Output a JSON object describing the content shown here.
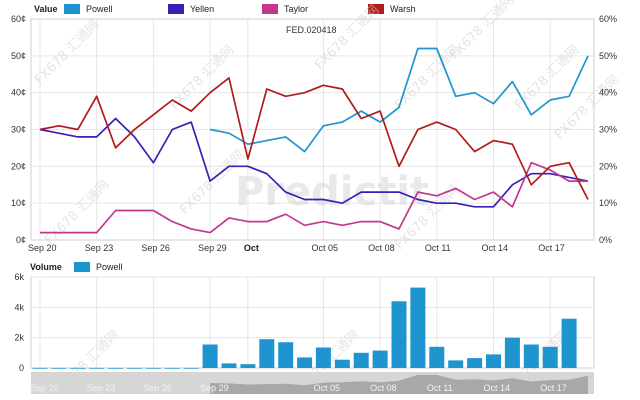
{
  "chart_data": [
    {
      "type": "line",
      "title": "FED.020418",
      "header_label": "Value",
      "y_left_ticks": [
        "0¢",
        "10¢",
        "20¢",
        "30¢",
        "40¢",
        "50¢",
        "60¢"
      ],
      "y_right_ticks": [
        "0%",
        "10%",
        "20%",
        "30%",
        "40%",
        "50%",
        "60%"
      ],
      "ylim": [
        0,
        60
      ],
      "x_ticks": [
        {
          "day": 20,
          "label": "Sep 20",
          "bold": false
        },
        {
          "day": 23,
          "label": "Sep 23",
          "bold": false
        },
        {
          "day": 26,
          "label": "Sep 26",
          "bold": false
        },
        {
          "day": 29,
          "label": "Sep 29",
          "bold": false
        },
        {
          "day": 31,
          "label": "Oct",
          "bold": true
        },
        {
          "day": 35,
          "label": "Oct 05",
          "bold": false
        },
        {
          "day": 38,
          "label": "Oct 08",
          "bold": false
        },
        {
          "day": 41,
          "label": "Oct 11",
          "bold": false
        },
        {
          "day": 44,
          "label": "Oct 14",
          "bold": false
        },
        {
          "day": 47,
          "label": "Oct 17",
          "bold": false
        }
      ],
      "series": [
        {
          "name": "Powell",
          "color": "#1f95d0",
          "x": [
            29,
            30,
            31,
            32,
            33,
            34,
            35,
            36,
            37,
            38,
            39,
            40,
            41,
            42,
            43,
            44,
            45,
            46,
            47,
            48,
            49
          ],
          "y": [
            30,
            29,
            26,
            27,
            28,
            24,
            31,
            32,
            35,
            32,
            36,
            52,
            52,
            39,
            40,
            37,
            43,
            34,
            38,
            39,
            50
          ]
        },
        {
          "name": "Yellen",
          "color": "#3a1fb8",
          "x": [
            20,
            21,
            22,
            23,
            24,
            25,
            26,
            27,
            28,
            29,
            30,
            31,
            32,
            33,
            34,
            35,
            36,
            37,
            38,
            39,
            40,
            41,
            42,
            43,
            44,
            45,
            46,
            47,
            48,
            49
          ],
          "y": [
            30,
            29,
            28,
            28,
            33,
            28,
            21,
            30,
            32,
            16,
            20,
            20,
            18,
            13,
            11,
            11,
            10,
            13,
            13,
            13,
            11,
            10,
            10,
            9,
            9,
            15,
            18,
            18,
            17,
            16
          ]
        },
        {
          "name": "Taylor",
          "color": "#c4378f",
          "x": [
            20,
            21,
            22,
            23,
            24,
            25,
            26,
            27,
            28,
            29,
            30,
            31,
            32,
            33,
            34,
            35,
            36,
            37,
            38,
            39,
            40,
            41,
            42,
            43,
            44,
            45,
            46,
            47,
            48,
            49
          ],
          "y": [
            2,
            2,
            2,
            2,
            8,
            8,
            8,
            5,
            3,
            2,
            6,
            5,
            5,
            7,
            4,
            5,
            4,
            5,
            5,
            3,
            13,
            12,
            14,
            11,
            13,
            9,
            21,
            19,
            16,
            16
          ]
        },
        {
          "name": "Warsh",
          "color": "#b01c1c",
          "x": [
            20,
            21,
            22,
            23,
            24,
            25,
            26,
            27,
            28,
            29,
            30,
            31,
            32,
            33,
            34,
            35,
            36,
            37,
            38,
            39,
            40,
            41,
            42,
            43,
            44,
            45,
            46,
            47,
            48,
            49
          ],
          "y": [
            30,
            31,
            30,
            39,
            25,
            30,
            34,
            38,
            35,
            40,
            44,
            22,
            41,
            39,
            40,
            42,
            41,
            33,
            35,
            20,
            30,
            32,
            30,
            24,
            27,
            26,
            15,
            20,
            21,
            11
          ]
        }
      ]
    },
    {
      "type": "bar",
      "header_label": "Volume",
      "legend": [
        {
          "name": "Powell",
          "color": "#1f95d0"
        }
      ],
      "y_ticks": [
        "0",
        "2k",
        "4k",
        "6k"
      ],
      "ylim": [
        0,
        6000
      ],
      "x": [
        20,
        21,
        22,
        23,
        24,
        25,
        26,
        27,
        28,
        29,
        30,
        31,
        32,
        33,
        34,
        35,
        36,
        37,
        38,
        39,
        40,
        41,
        42,
        43,
        44,
        45,
        46,
        47,
        48,
        49
      ],
      "values": [
        5,
        5,
        5,
        5,
        5,
        5,
        5,
        5,
        5,
        1550,
        300,
        250,
        1900,
        1700,
        700,
        1350,
        550,
        1000,
        1150,
        4400,
        5300,
        1400,
        500,
        650,
        900,
        2000,
        1550,
        1400,
        3250,
        0
      ]
    }
  ],
  "navigator": {
    "labels": [
      "Sep 20",
      "Sep 23",
      "Sep 26",
      "Sep 29",
      "Oct 05",
      "Oct 08",
      "Oct 11",
      "Oct 14",
      "Oct 17"
    ]
  },
  "watermark": {
    "brand": "Predictit",
    "tag": "FX678 汇通网"
  }
}
